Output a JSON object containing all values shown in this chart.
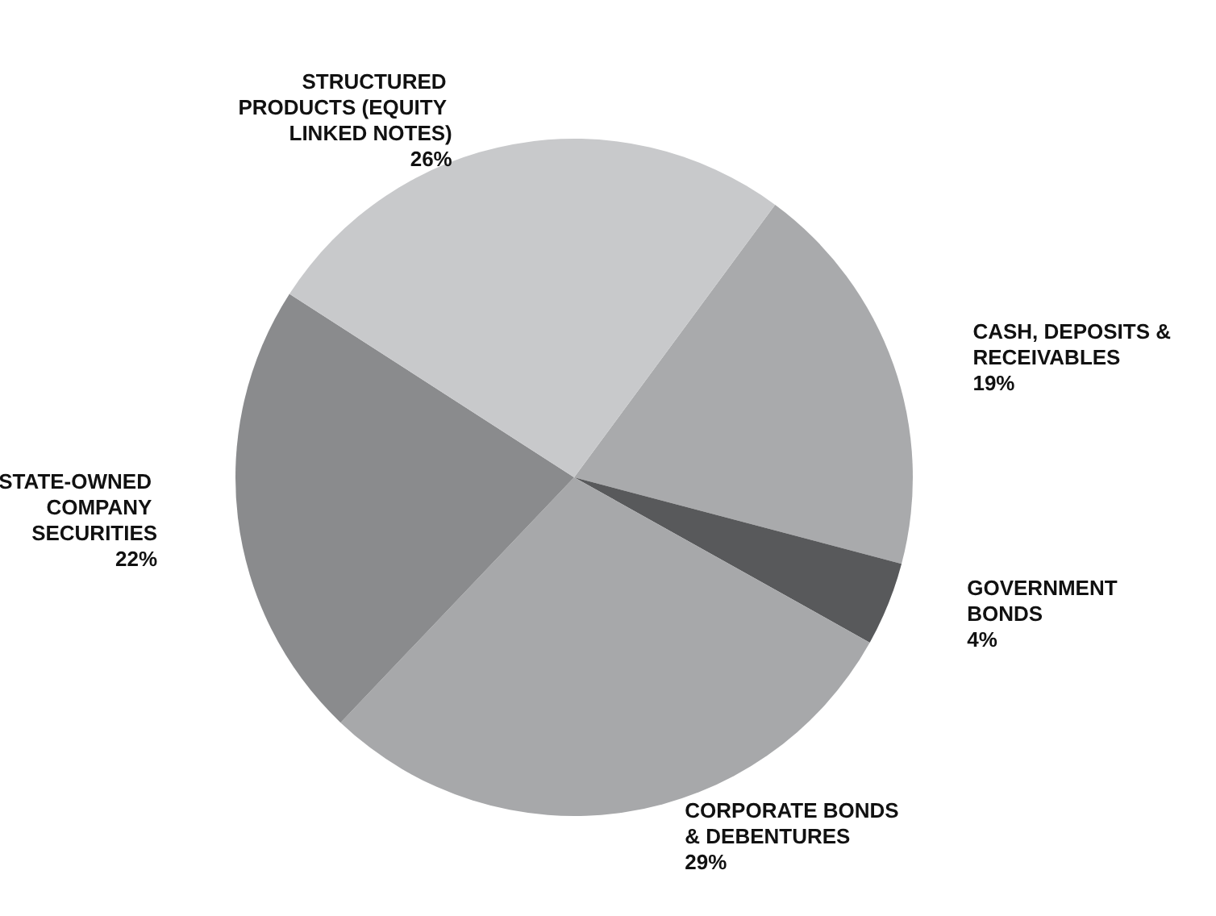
{
  "chart_data": {
    "type": "pie",
    "categories": [
      "CASH, DEPOSITS & RECEIVABLES",
      "GOVERNMENT BONDS",
      "CORPORATE BONDS & DEBENTURES",
      "STATE-OWNED COMPANY SECURITIES",
      "STRUCTURED PRODUCTS (EQUITY LINKED NOTES)"
    ],
    "values": [
      19,
      4,
      29,
      22,
      26
    ],
    "value_labels": [
      "19%",
      "4%",
      "29%",
      "22%",
      "26%"
    ],
    "colors": [
      "#a9aaac",
      "#58595b",
      "#a7a8aa",
      "#8a8b8d",
      "#c8c9cb"
    ],
    "legend": false
  }
}
